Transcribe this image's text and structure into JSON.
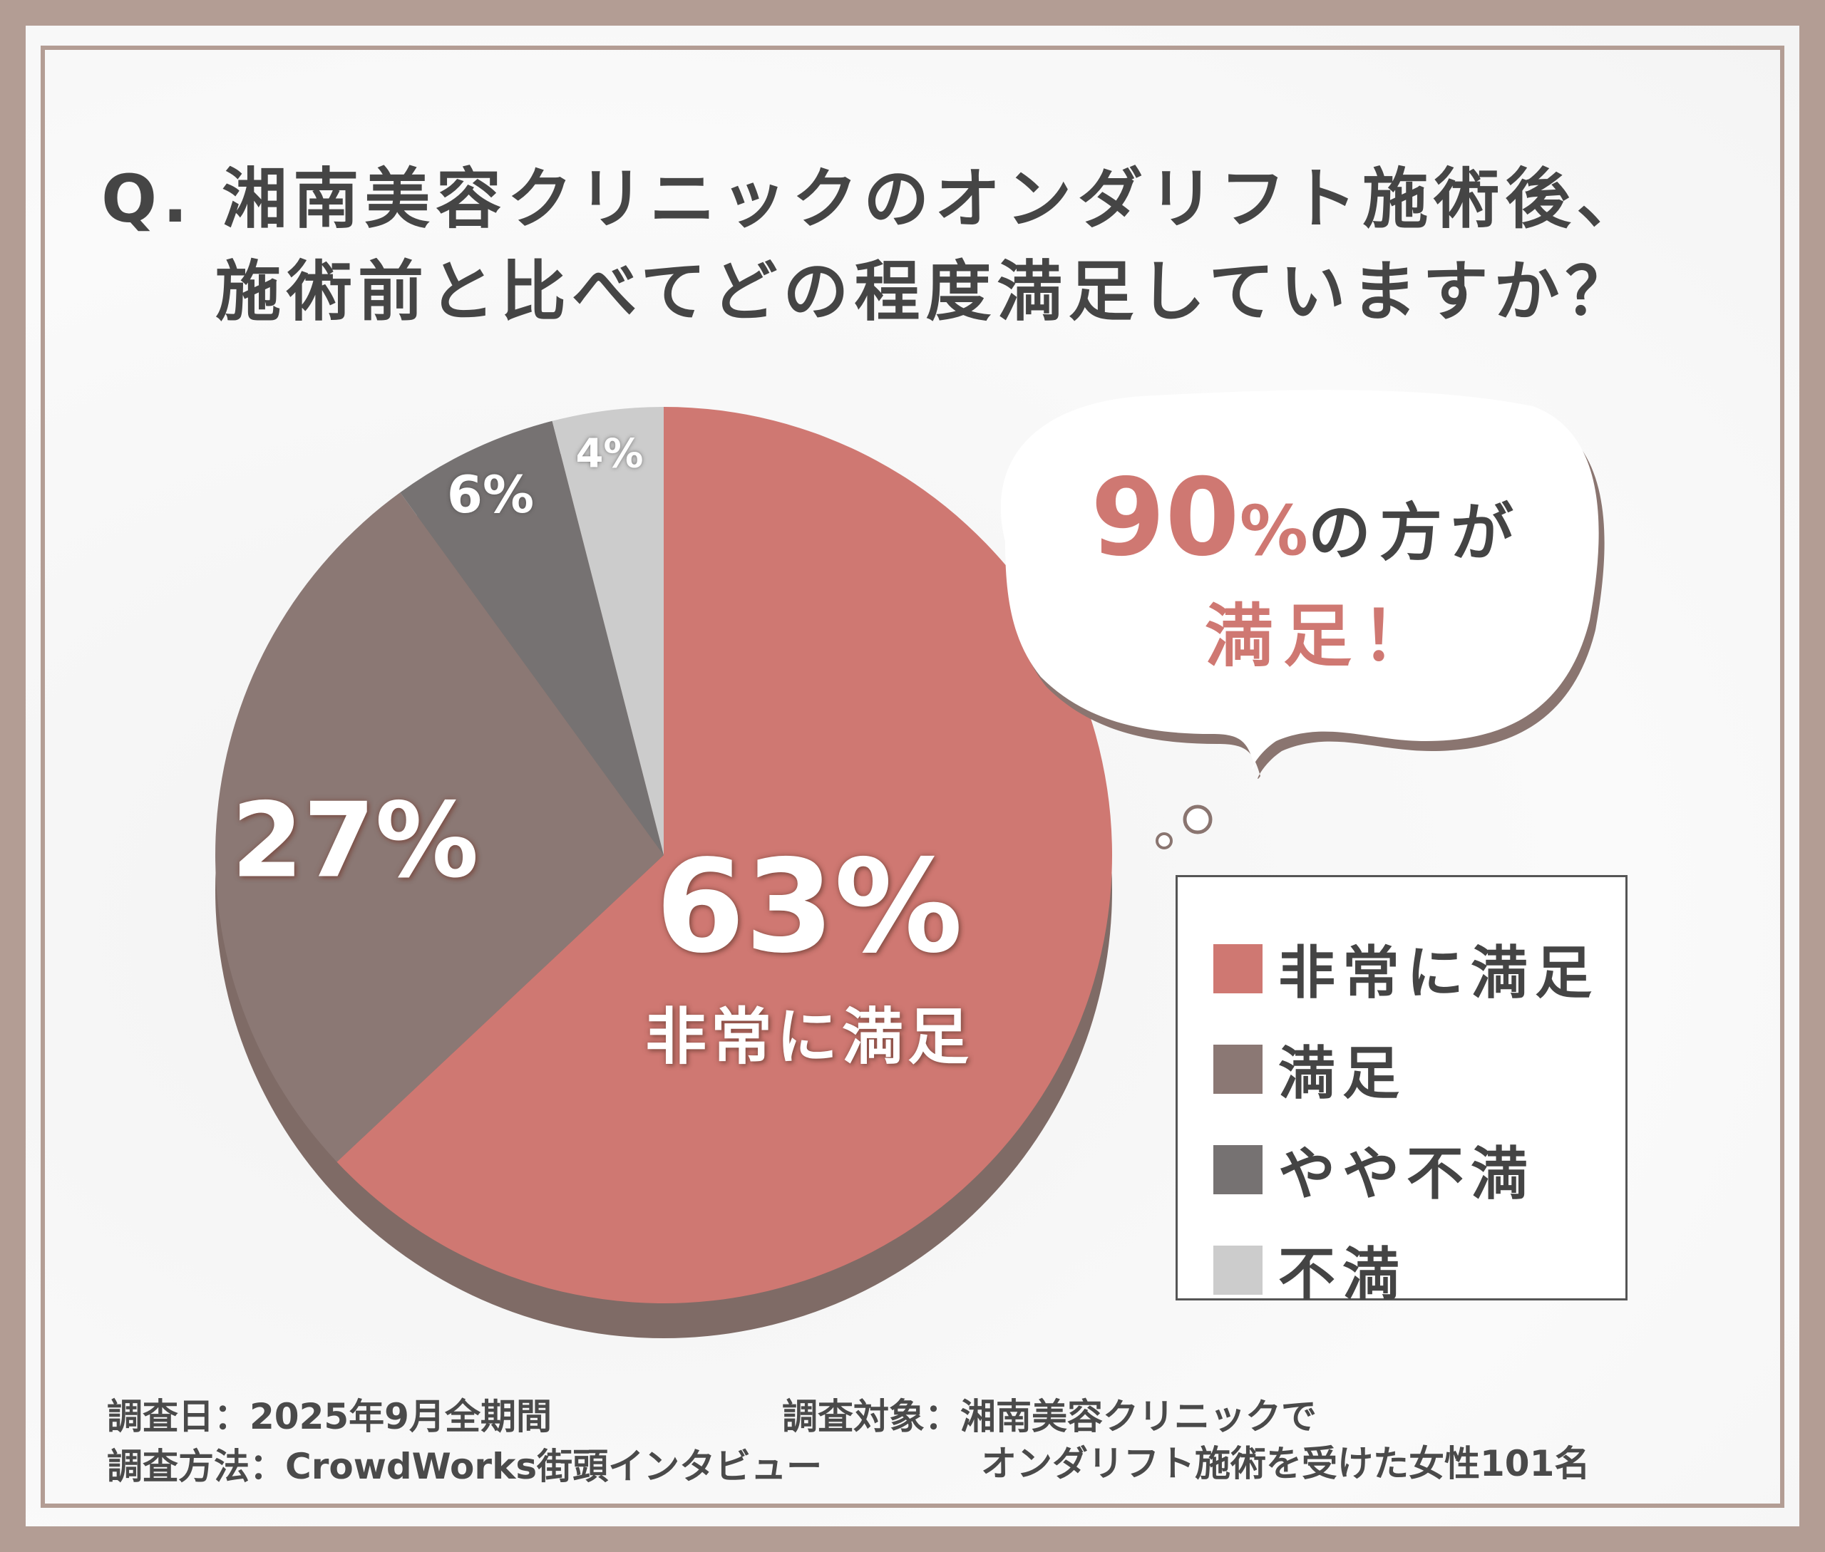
{
  "title": {
    "line1": "Q. 湘南美容クリニックのオンダリフト施術後、",
    "line2": "施術前と比べてどの程度満足していますか？"
  },
  "callout": {
    "number": "90",
    "percent": "%",
    "suffix": "の方が",
    "line2": "満足！"
  },
  "chart_data": {
    "type": "pie",
    "title": "湘南美容クリニックのオンダリフト施術後、施術前と比べてどの程度満足していますか？",
    "categories": [
      "非常に満足",
      "満足",
      "やや不満",
      "不満"
    ],
    "values": [
      63,
      27,
      6,
      4
    ],
    "labels": [
      "63%",
      "27%",
      "6%",
      "4%"
    ],
    "center_caption": "非常に満足",
    "colors": [
      "#cf7872",
      "#8b7874",
      "#767272",
      "#cccccc"
    ],
    "legend_placement": "right"
  },
  "footer": {
    "date": "調査日：2025年9月全期間",
    "method": "調査方法：CrowdWorks街頭インタビュー",
    "target1": "調査対象：湘南美容クリニックで",
    "target2": "オンダリフト施術を受けた女性101名"
  }
}
